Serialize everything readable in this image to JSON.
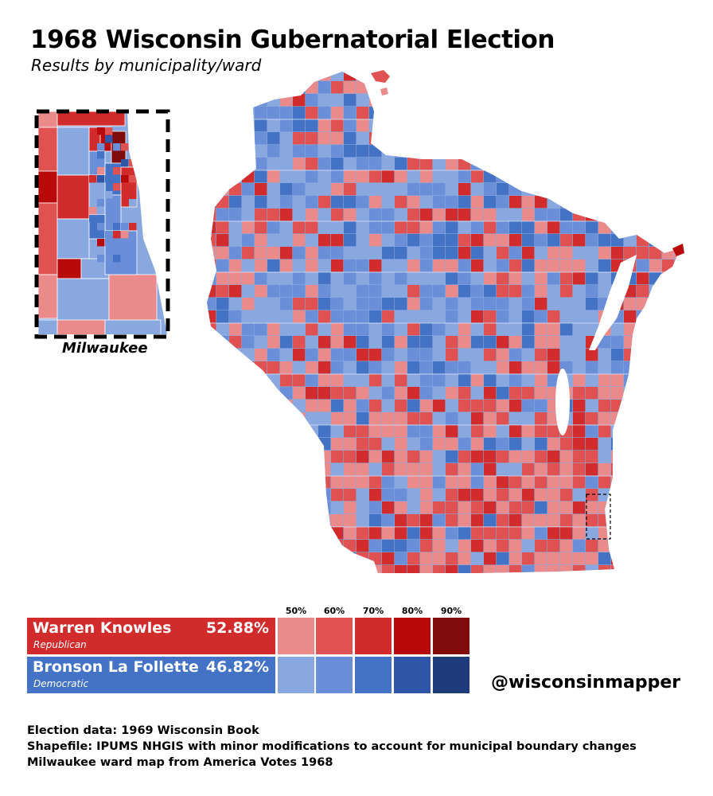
{
  "title": "1968 Wisconsin Gubernatorial Election",
  "subtitle": "Results by municipality/ward",
  "inset_label": "Milwaukee",
  "legend": {
    "scale_labels": [
      "50%",
      "60%",
      "70%",
      "80%",
      "90%"
    ],
    "republican": {
      "name": "Warren Knowles",
      "party": "Republican",
      "percent": "52.88%",
      "colors": [
        "#eb8a8a",
        "#e05252",
        "#d22b2b",
        "#b80a0a",
        "#800b0b"
      ]
    },
    "democratic": {
      "name": "Bronson La Follette",
      "party": "Democratic",
      "percent": "46.82%",
      "colors": [
        "#8aa8e0",
        "#6a8fd8",
        "#4472c4",
        "#2f56a6",
        "#1f3a78"
      ]
    }
  },
  "handle": "@wisconsinmapper",
  "credits": [
    "Election data: 1969 Wisconsin Book",
    "Shapefile: IPUMS NHGIS with minor modifications to account for municipal boundary changes",
    "Milwaukee ward map from America Votes 1968"
  ]
}
